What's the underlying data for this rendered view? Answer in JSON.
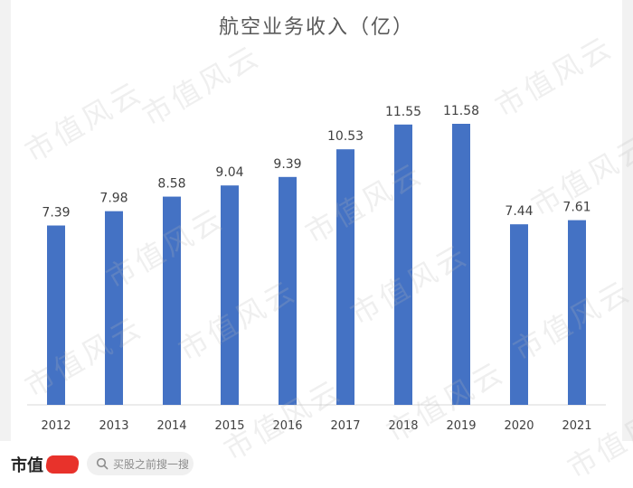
{
  "chart_data": {
    "type": "bar",
    "title": "航空业务收入（亿）",
    "categories": [
      "2012",
      "2013",
      "2014",
      "2015",
      "2016",
      "2017",
      "2018",
      "2019",
      "2020",
      "2021"
    ],
    "values": [
      7.39,
      7.98,
      8.58,
      9.04,
      9.39,
      10.53,
      11.55,
      11.58,
      7.44,
      7.61
    ],
    "value_labels": [
      "7.39",
      "7.98",
      "8.58",
      "9.04",
      "9.39",
      "10.53",
      "11.55",
      "11.58",
      "7.44",
      "7.61"
    ],
    "xlabel": "",
    "ylabel": "",
    "ylim": [
      0,
      12.5
    ],
    "grid": false,
    "legend": "none",
    "bar_color": "#4472c4"
  },
  "watermark": {
    "text": "市值风云"
  },
  "footer": {
    "logo_text": "市值",
    "search_placeholder": "买股之前搜一搜"
  }
}
